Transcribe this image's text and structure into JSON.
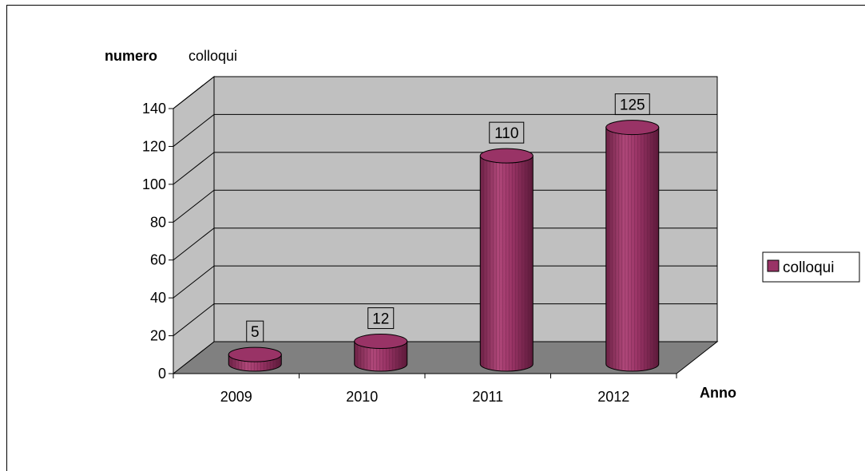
{
  "chart_data": {
    "type": "bar",
    "style": "3d-cylinder",
    "ylabel_bold": "numero",
    "ylabel_rest": "colloqui",
    "xlabel": "Anno",
    "categories": [
      "2009",
      "2010",
      "2011",
      "2012"
    ],
    "series": [
      {
        "name": "colloqui",
        "values": [
          5,
          12,
          110,
          125
        ],
        "color": "#993366"
      }
    ],
    "ylim": [
      0,
      140
    ],
    "yticks": [
      0,
      20,
      40,
      60,
      80,
      100,
      120,
      140
    ],
    "grid": true,
    "legend": "right",
    "wall_color": "#c0c0c0",
    "floor_color": "#808080"
  }
}
